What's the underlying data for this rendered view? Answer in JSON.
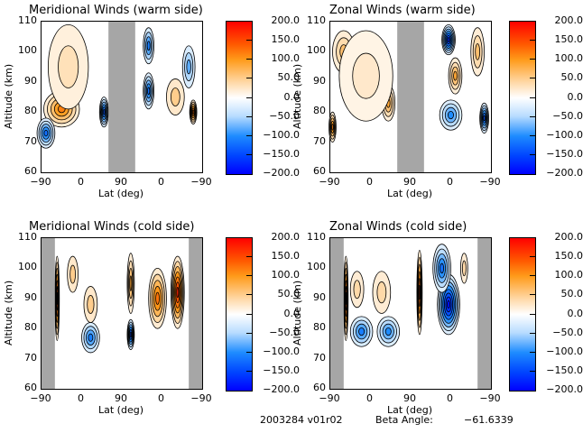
{
  "chart_data": [
    {
      "type": "heatmap",
      "id": "meridional-warm",
      "title": "Meridional Winds (warm side)",
      "xlabel": "Lat (deg)",
      "ylabel": "Altitude (km)",
      "xticks": [
        "-90",
        "0",
        "90",
        "0",
        "-90"
      ],
      "yticks": [
        "60",
        "70",
        "80",
        "90",
        "100",
        "110"
      ],
      "ylim": [
        60,
        110
      ],
      "colorbar": {
        "ticks": [
          "200.0",
          "150.0",
          "100.0",
          "50.0",
          "0.0",
          "-50.0",
          "-100.0",
          "-150.0",
          "-200.0"
        ],
        "range": [
          -200,
          200
        ]
      },
      "missing_lat_bands": [
        [
          60,
          120
        ]
      ],
      "features": [
        {
          "x": -45,
          "alt": 81,
          "v": 120,
          "w": 40,
          "h": 6
        },
        {
          "x": -30,
          "alt": 95,
          "v": 40,
          "w": 45,
          "h": 14
        },
        {
          "x": -80,
          "alt": 73,
          "v": -120,
          "w": 20,
          "h": 5
        },
        {
          "x": 50,
          "alt": 80,
          "v": -140,
          "w": 10,
          "h": 5
        },
        {
          "x": 150,
          "alt": 102,
          "v": -110,
          "w": 12,
          "h": 6
        },
        {
          "x": 150,
          "alt": 87,
          "v": -120,
          "w": 12,
          "h": 6
        },
        {
          "x": 210,
          "alt": 85,
          "v": 60,
          "w": 20,
          "h": 6
        },
        {
          "x": 250,
          "alt": 80,
          "v": 140,
          "w": 8,
          "h": 4
        },
        {
          "x": 240,
          "alt": 95,
          "v": -80,
          "w": 14,
          "h": 7
        }
      ]
    },
    {
      "type": "heatmap",
      "id": "zonal-warm",
      "title": "Zonal Winds (warm side)",
      "xlabel": "Lat (deg)",
      "ylabel": "Altitude (km)",
      "xticks": [
        "-90",
        "0",
        "90",
        "0",
        "-90"
      ],
      "yticks": [
        "60",
        "70",
        "80",
        "90",
        "100",
        "110"
      ],
      "ylim": [
        60,
        110
      ],
      "colorbar": {
        "ticks": [
          "200.0",
          "150.0",
          "100.0",
          "50.0",
          "0.0",
          "-50.0",
          "-100.0",
          "-150.0",
          "-200.0"
        ],
        "range": [
          -200,
          200
        ]
      },
      "missing_lat_bands": [
        [
          60,
          120
        ]
      ],
      "features": [
        {
          "x": -60,
          "alt": 100,
          "v": 70,
          "w": 25,
          "h": 7
        },
        {
          "x": 40,
          "alt": 83,
          "v": 90,
          "w": 15,
          "h": 6
        },
        {
          "x": -85,
          "alt": 75,
          "v": 120,
          "w": 8,
          "h": 5
        },
        {
          "x": -10,
          "alt": 92,
          "v": 30,
          "w": 60,
          "h": 15
        },
        {
          "x": 175,
          "alt": 104,
          "v": -170,
          "w": 15,
          "h": 5
        },
        {
          "x": 190,
          "alt": 92,
          "v": 90,
          "w": 15,
          "h": 6
        },
        {
          "x": 240,
          "alt": 100,
          "v": 70,
          "w": 15,
          "h": 8
        },
        {
          "x": 180,
          "alt": 79,
          "v": -100,
          "w": 25,
          "h": 5
        },
        {
          "x": 255,
          "alt": 78,
          "v": -140,
          "w": 10,
          "h": 5
        }
      ]
    },
    {
      "type": "heatmap",
      "id": "meridional-cold",
      "title": "Meridional Winds (cold side)",
      "xlabel": "Lat (deg)",
      "ylabel": "Altitude (km)",
      "xticks": [
        "-90",
        "0",
        "90",
        "0",
        "-90"
      ],
      "yticks": [
        "60",
        "70",
        "80",
        "90",
        "100",
        "110"
      ],
      "ylim": [
        60,
        110
      ],
      "colorbar": {
        "ticks": [
          "200.0",
          "150.0",
          "100.0",
          "50.0",
          "0.0",
          "-50.0",
          "-100.0",
          "-150.0",
          "-200.0"
        ],
        "range": [
          -200,
          200
        ]
      },
      "missing_lat_bands": [
        [
          -90,
          -60
        ],
        [
          240,
          270
        ]
      ],
      "features": [
        {
          "x": -55,
          "alt": 90,
          "v": 170,
          "w": 5,
          "h": 14
        },
        {
          "x": -20,
          "alt": 98,
          "v": 60,
          "w": 12,
          "h": 6
        },
        {
          "x": 20,
          "alt": 88,
          "v": 60,
          "w": 15,
          "h": 6
        },
        {
          "x": 20,
          "alt": 77,
          "v": -110,
          "w": 20,
          "h": 5
        },
        {
          "x": 110,
          "alt": 78,
          "v": -150,
          "w": 8,
          "h": 5
        },
        {
          "x": 110,
          "alt": 95,
          "v": 90,
          "w": 8,
          "h": 10
        },
        {
          "x": 170,
          "alt": 90,
          "v": 130,
          "w": 20,
          "h": 10
        },
        {
          "x": 215,
          "alt": 92,
          "v": 180,
          "w": 15,
          "h": 12
        }
      ]
    },
    {
      "type": "heatmap",
      "id": "zonal-cold",
      "title": "Zonal Winds (cold side)",
      "xlabel": "Lat (deg)",
      "ylabel": "Altitude (km)",
      "xticks": [
        "-90",
        "0",
        "90",
        "0",
        "-90"
      ],
      "yticks": [
        "60",
        "70",
        "80",
        "90",
        "100",
        "110"
      ],
      "ylim": [
        60,
        110
      ],
      "colorbar": {
        "ticks": [
          "200.0",
          "150.0",
          "100.0",
          "50.0",
          "0.0",
          "-50.0",
          "-100.0",
          "-150.0",
          "-200.0"
        ],
        "range": [
          -200,
          200
        ]
      },
      "missing_lat_bands": [
        [
          -90,
          -60
        ],
        [
          240,
          270
        ]
      ],
      "features": [
        {
          "x": -55,
          "alt": 90,
          "v": 170,
          "w": 5,
          "h": 14
        },
        {
          "x": -30,
          "alt": 93,
          "v": 50,
          "w": 15,
          "h": 6
        },
        {
          "x": 25,
          "alt": 92,
          "v": 50,
          "w": 20,
          "h": 7
        },
        {
          "x": -20,
          "alt": 79,
          "v": -110,
          "w": 25,
          "h": 5
        },
        {
          "x": 40,
          "alt": 79,
          "v": -100,
          "w": 25,
          "h": 5
        },
        {
          "x": 110,
          "alt": 92,
          "v": 160,
          "w": 6,
          "h": 14
        },
        {
          "x": 175,
          "alt": 88,
          "v": -190,
          "w": 25,
          "h": 10
        },
        {
          "x": 160,
          "alt": 100,
          "v": -120,
          "w": 20,
          "h": 8
        },
        {
          "x": 210,
          "alt": 100,
          "v": 50,
          "w": 8,
          "h": 5
        }
      ]
    }
  ],
  "footer": {
    "date_version": "2003284 v01r02",
    "beta_label": "Beta Angle:",
    "beta_value": "-61.6339"
  }
}
